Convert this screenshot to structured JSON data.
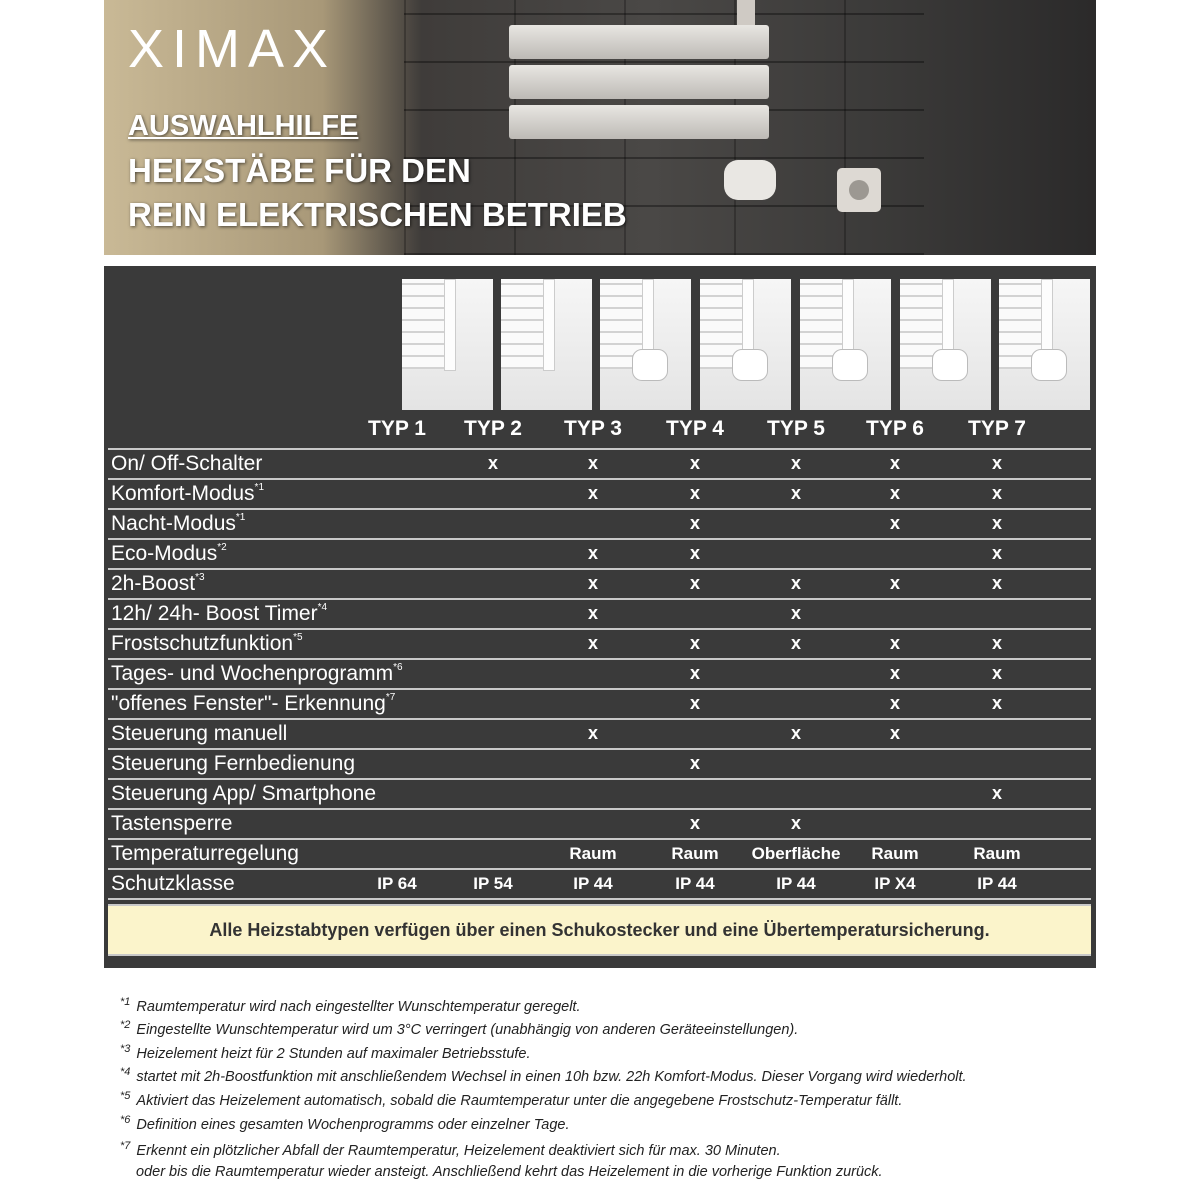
{
  "header": {
    "brand": "XIMAX",
    "title_line1": "AUSWAHLHILFE",
    "title_line2": "HEIZSTÄBE FÜR DEN",
    "title_line3": "REIN ELEKTRISCHEN BETRIEB"
  },
  "types": [
    "TYP 1",
    "TYP 2",
    "TYP 3",
    "TYP 4",
    "TYP 5",
    "TYP 6",
    "TYP 7"
  ],
  "rows": [
    {
      "label": "On/ Off-Schalter",
      "sup": "",
      "cells": [
        "",
        "x",
        "x",
        "x",
        "x",
        "x",
        "x"
      ]
    },
    {
      "label": "Komfort-Modus",
      "sup": "*1",
      "cells": [
        "",
        "",
        "x",
        "x",
        "x",
        "x",
        "x"
      ]
    },
    {
      "label": "Nacht-Modus",
      "sup": "*1",
      "cells": [
        "",
        "",
        "",
        "x",
        "",
        "x",
        "x"
      ]
    },
    {
      "label": "Eco-Modus",
      "sup": "*2",
      "cells": [
        "",
        "",
        "x",
        "x",
        "",
        "",
        "x"
      ]
    },
    {
      "label": "2h-Boost",
      "sup": "*3",
      "cells": [
        "",
        "",
        "x",
        "x",
        "x",
        "x",
        "x"
      ]
    },
    {
      "label": "12h/ 24h- Boost Timer",
      "sup": "*4",
      "cells": [
        "",
        "",
        "x",
        "",
        "x",
        "",
        ""
      ]
    },
    {
      "label": "Frostschutzfunktion",
      "sup": "*5",
      "cells": [
        "",
        "",
        "x",
        "x",
        "x",
        "x",
        "x"
      ]
    },
    {
      "label": "Tages- und Wochenprogramm",
      "sup": "*6",
      "cells": [
        "",
        "",
        "",
        "x",
        "",
        "x",
        "x"
      ]
    },
    {
      "label": "\"offenes Fenster\"- Erkennung",
      "sup": "*7",
      "cells": [
        "",
        "",
        "",
        "x",
        "",
        "x",
        "x"
      ]
    },
    {
      "label": "Steuerung manuell",
      "sup": "",
      "cells": [
        "",
        "",
        "x",
        "",
        "x",
        "x",
        ""
      ]
    },
    {
      "label": "Steuerung Fernbedienung",
      "sup": "",
      "cells": [
        "",
        "",
        "",
        "x",
        "",
        "",
        ""
      ]
    },
    {
      "label": "Steuerung App/ Smartphone",
      "sup": "",
      "cells": [
        "",
        "",
        "",
        "",
        "",
        "",
        "x"
      ]
    },
    {
      "label": "Tastensperre",
      "sup": "",
      "cells": [
        "",
        "",
        "",
        "x",
        "x",
        "",
        ""
      ]
    },
    {
      "label": "Temperaturregelung",
      "sup": "",
      "cells": [
        "",
        "",
        "Raum",
        "Raum",
        "Oberfläche",
        "Raum",
        "Raum"
      ]
    },
    {
      "label": "Schutzklasse",
      "sup": "",
      "cells": [
        "IP 64",
        "IP 54",
        "IP 44",
        "IP 44",
        "IP 44",
        "IP X4",
        "IP 44"
      ]
    }
  ],
  "note": "Alle Heizstabtypen verfügen über einen Schukostecker und eine Übertemperatursicherung.",
  "footnotes": [
    {
      "mark": "*1",
      "text": "Raumtemperatur wird nach eingestellter Wunschtemperatur geregelt."
    },
    {
      "mark": "*2",
      "text": "Eingestellte Wunschtemperatur wird um 3°C verringert (unabhängig von anderen Geräteeinstellungen)."
    },
    {
      "mark": "*3",
      "text": "Heizelement heizt für 2 Stunden auf maximaler Betriebsstufe."
    },
    {
      "mark": "*4",
      "text": "startet mit 2h-Boostfunktion mit anschließendem Wechsel in einen 10h bzw. 22h Komfort-Modus. Dieser Vorgang wird wiederholt."
    },
    {
      "mark": "*5",
      "text": "Aktiviert das Heizelement automatisch, sobald die Raumtemperatur unter die angegebene Frostschutz-Temperatur fällt."
    },
    {
      "mark": "*6",
      "text": "Definition eines gesamten Wochenprogramms oder einzelner Tage."
    },
    {
      "mark": "*7",
      "text": "Erkennt ein plötzlicher Abfall der Raumtemperatur, Heizelement deaktiviert sich für max. 30 Minuten."
    },
    {
      "mark": "",
      "text": "oder bis die Raumtemperatur wieder ansteigt. Anschließend kehrt das Heizelement in die vorherige Funktion zurück."
    }
  ],
  "colors": {
    "panel": "#3a3a3a",
    "note_bg": "#fbf4cb",
    "logo_accent": "#1a8a9a"
  }
}
